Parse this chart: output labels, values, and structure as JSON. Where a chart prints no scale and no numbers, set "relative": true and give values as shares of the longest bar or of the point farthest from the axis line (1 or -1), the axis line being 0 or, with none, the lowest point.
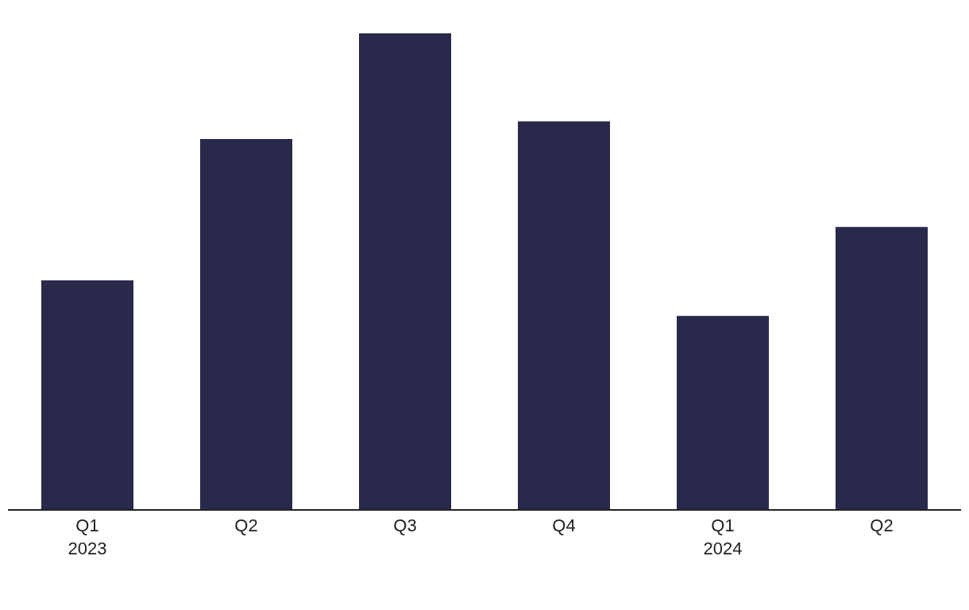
{
  "chart_data": {
    "type": "bar",
    "relative": true,
    "categories": [
      "Q1\n2023",
      "Q2",
      "Q3",
      "Q4",
      "Q1\n2024",
      "Q2"
    ],
    "values": [
      0.481,
      0.778,
      1,
      0.815,
      0.406,
      0.593
    ],
    "color": "#29294b",
    "grid": false,
    "legend": false
  }
}
